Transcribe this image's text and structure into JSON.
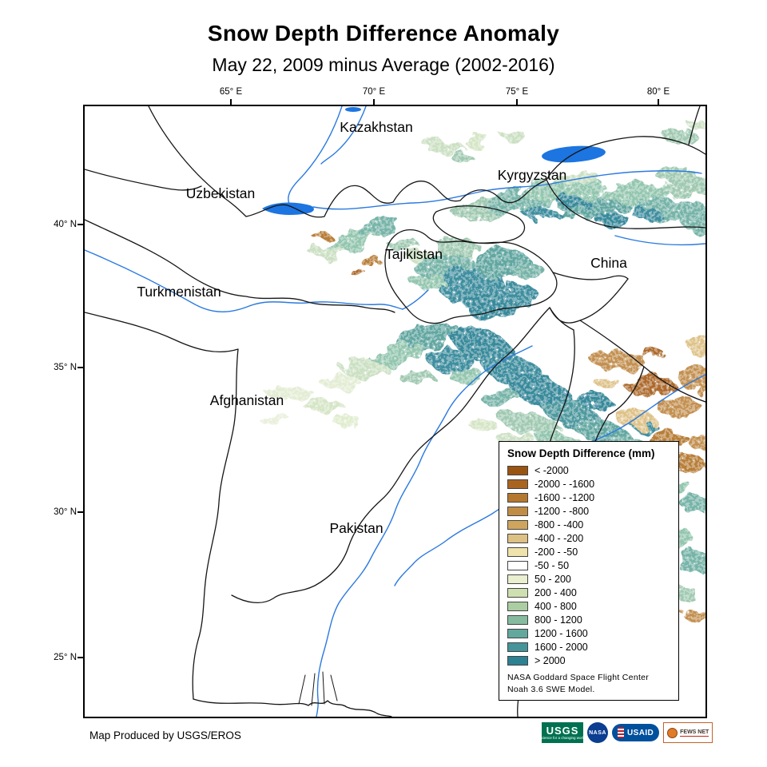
{
  "title": "Snow Depth Difference Anomaly",
  "subtitle": "May 22, 2009 minus Average (2002-2016)",
  "map": {
    "x_ticks": [
      "65° E",
      "70° E",
      "75° E",
      "80° E"
    ],
    "y_ticks": [
      "40° N",
      "35° N",
      "30° N",
      "25° N"
    ],
    "countries": {
      "kazakhstan": "Kazakhstan",
      "uzbekistan": "Uzbekistan",
      "kyrgyzstan": "Kyrgyzstan",
      "turkmenistan": "Turkmenistan",
      "tajikistan": "Tajikistan",
      "china": "China",
      "afghanistan": "Afghanistan",
      "pakistan": "Pakistan"
    }
  },
  "legend": {
    "title": "Snow Depth Difference (mm)",
    "classes": [
      {
        "label": "< -2000",
        "color": "#9a5412"
      },
      {
        "label": "-2000 - -1600",
        "color": "#a96420"
      },
      {
        "label": "-1600 - -1200",
        "color": "#b5782f"
      },
      {
        "label": "-1200 - -800",
        "color": "#c18d45"
      },
      {
        "label": "-800 - -400",
        "color": "#cfa55e"
      },
      {
        "label": "-400 - -200",
        "color": "#ddc083"
      },
      {
        "label": "-200 - -50",
        "color": "#efe2ab"
      },
      {
        "label": "-50 - 50",
        "color": "#ffffff"
      },
      {
        "label": "50 - 200",
        "color": "#e9efcf"
      },
      {
        "label": "200 - 400",
        "color": "#cfe0b0"
      },
      {
        "label": "400 - 800",
        "color": "#abcda2"
      },
      {
        "label": "800 - 1200",
        "color": "#86bb9f"
      },
      {
        "label": "1200 - 1600",
        "color": "#63a89d"
      },
      {
        "label": "1600 - 2000",
        "color": "#45949a"
      },
      {
        "label": "> 2000",
        "color": "#2c8193"
      }
    ],
    "note_line1": "NASA Goddard Space Flight Center",
    "note_line2": "Noah 3.6 SWE  Model.",
    "accent_negative": "#9a5412",
    "accent_positive": "#2c8193"
  },
  "footer": {
    "credit": "Map Produced by USGS/EROS"
  },
  "logos": {
    "usgs": "USGS",
    "usgs_tagline": "science for a changing world",
    "nasa": "NASA",
    "usaid": "USAID",
    "fewsnet": "FEWS NET"
  }
}
